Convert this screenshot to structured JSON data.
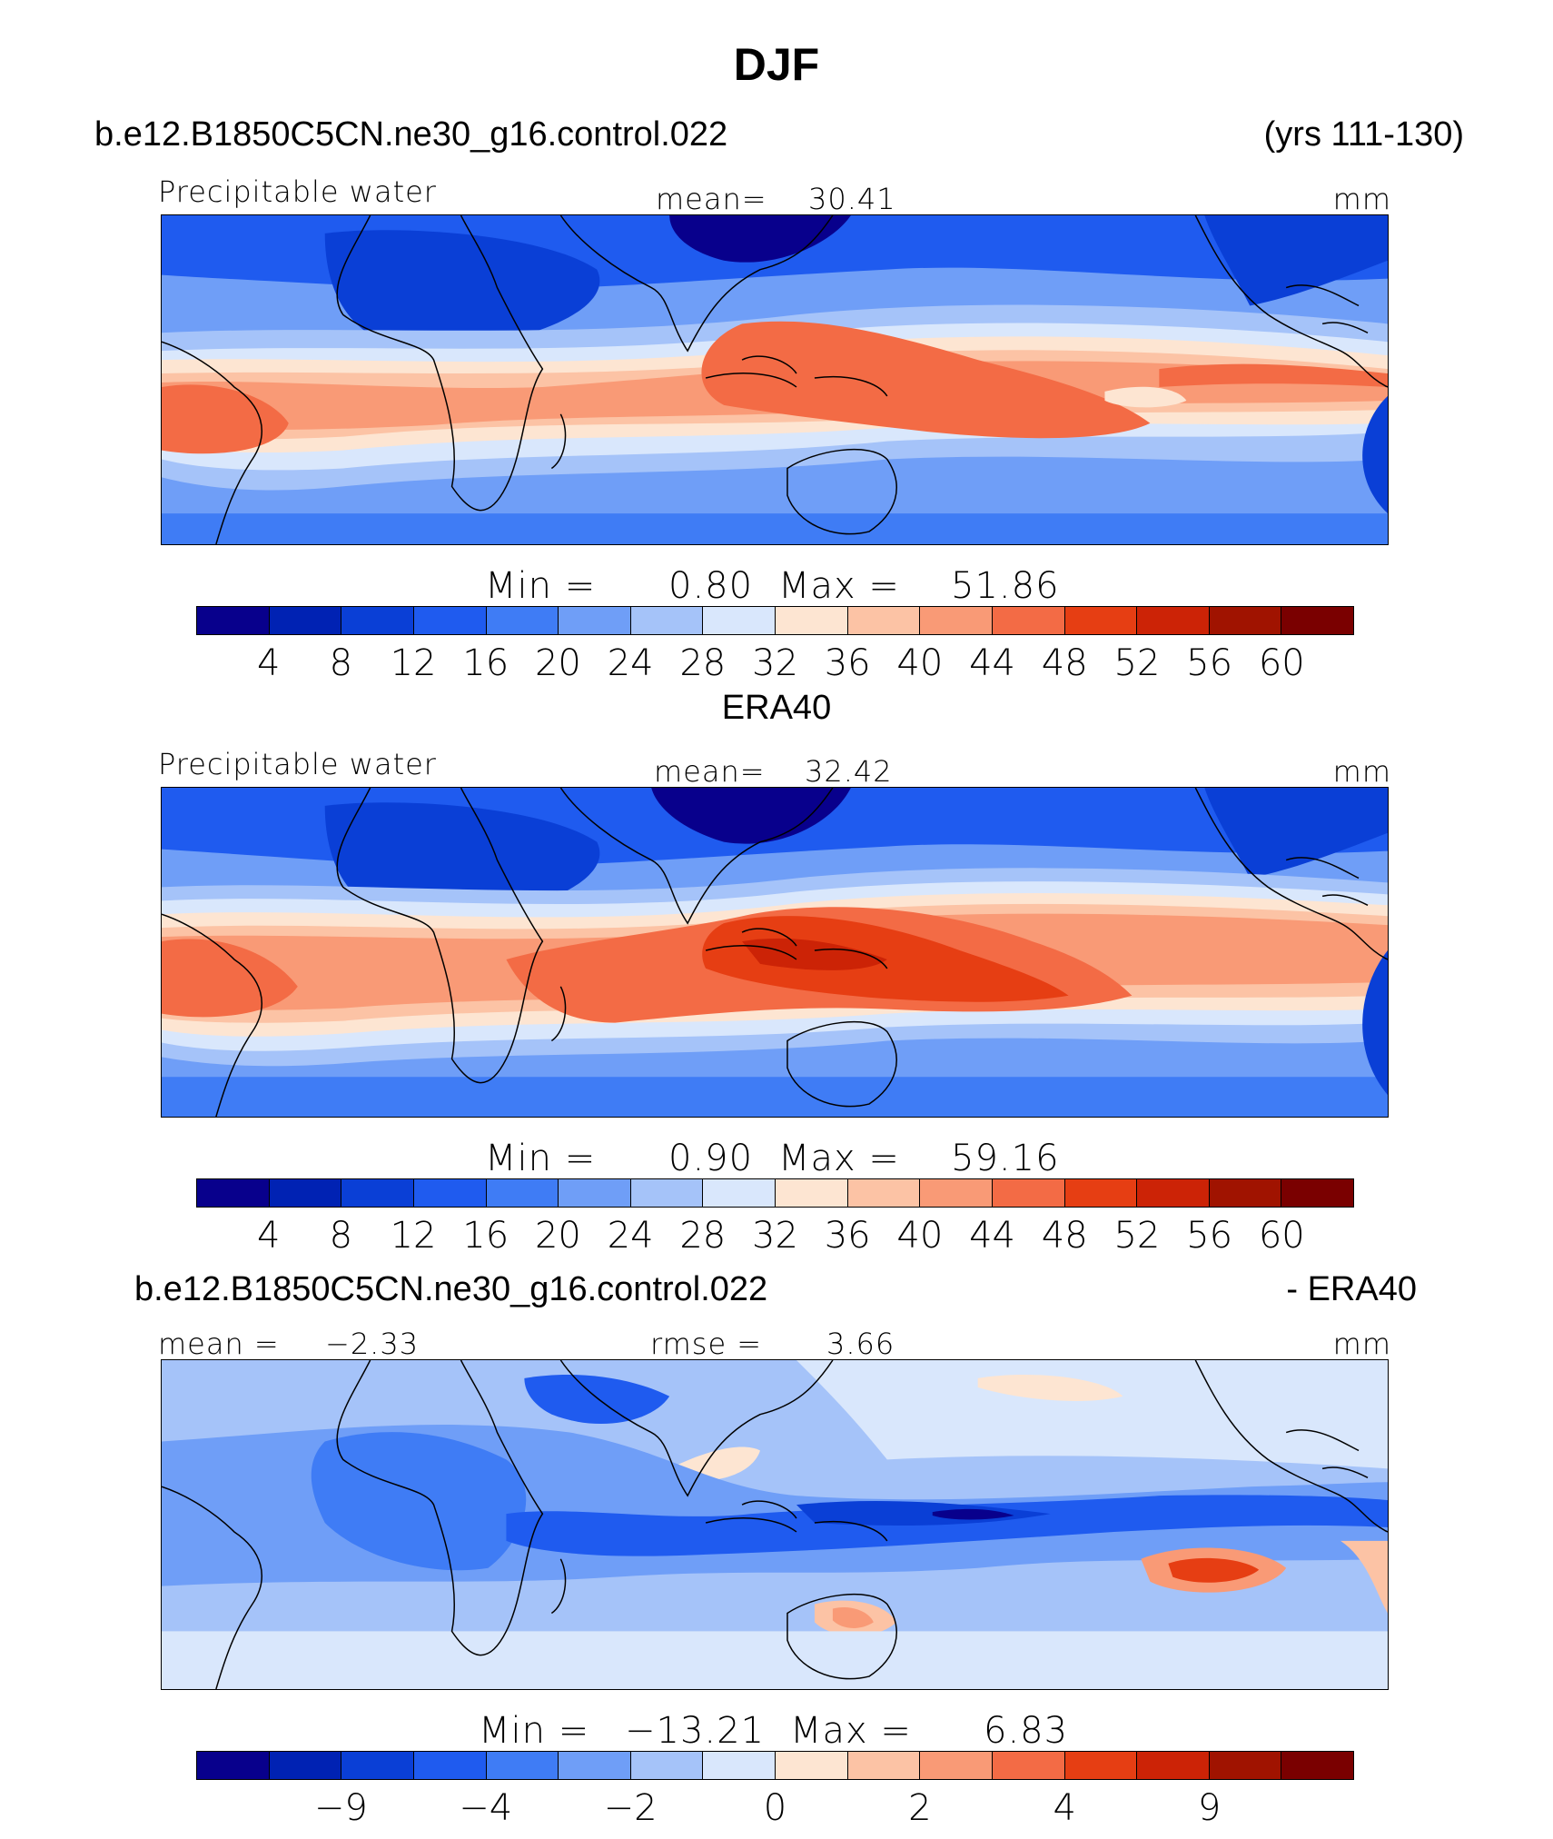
{
  "figure": {
    "title": "DJF",
    "colors": [
      "#08008c",
      "#0022b3",
      "#0a3fd6",
      "#1f5bef",
      "#3f7cf5",
      "#6f9ef7",
      "#a5c3f9",
      "#d9e7fc",
      "#fde5d2",
      "#fcc3a5",
      "#f99a76",
      "#f36b45",
      "#e63e13",
      "#cc2306",
      "#a01300",
      "#7a0000"
    ]
  },
  "panel1": {
    "case": "b.e12.B1850C5CN.ne30_g16.control.022",
    "years": "(yrs 111-130)",
    "var": "Precipitable  water",
    "mean_label": "mean=",
    "mean": "30.41",
    "units": "mm",
    "min_label": "Min  =",
    "min": "0.80",
    "max_label": "Max  =",
    "max": "51.86",
    "ticks": [
      "4",
      "8",
      "12",
      "16",
      "20",
      "24",
      "28",
      "32",
      "36",
      "40",
      "44",
      "48",
      "52",
      "56",
      "60"
    ]
  },
  "panel2": {
    "case": "ERA40",
    "var": "Precipitable  water",
    "mean_label": "mean=",
    "mean": "32.42",
    "units": "mm",
    "min_label": "Min  =",
    "min": "0.90",
    "max_label": "Max  =",
    "max": "59.16",
    "ticks": [
      "4",
      "8",
      "12",
      "16",
      "20",
      "24",
      "28",
      "32",
      "36",
      "40",
      "44",
      "48",
      "52",
      "56",
      "60"
    ]
  },
  "panel3": {
    "case": "b.e12.B1850C5CN.ne30_g16.control.022",
    "minus": "- ERA40",
    "mean_label": "mean  =",
    "mean": "−2.33",
    "rmse_label": "rmse  =",
    "rmse": "3.66",
    "units": "mm",
    "min_label": "Min  =",
    "min": "−13.21",
    "max_label": "Max  =",
    "max": "6.83",
    "ticks": [
      "−9",
      "−4",
      "−2",
      "0",
      "2",
      "4",
      "9"
    ]
  }
}
